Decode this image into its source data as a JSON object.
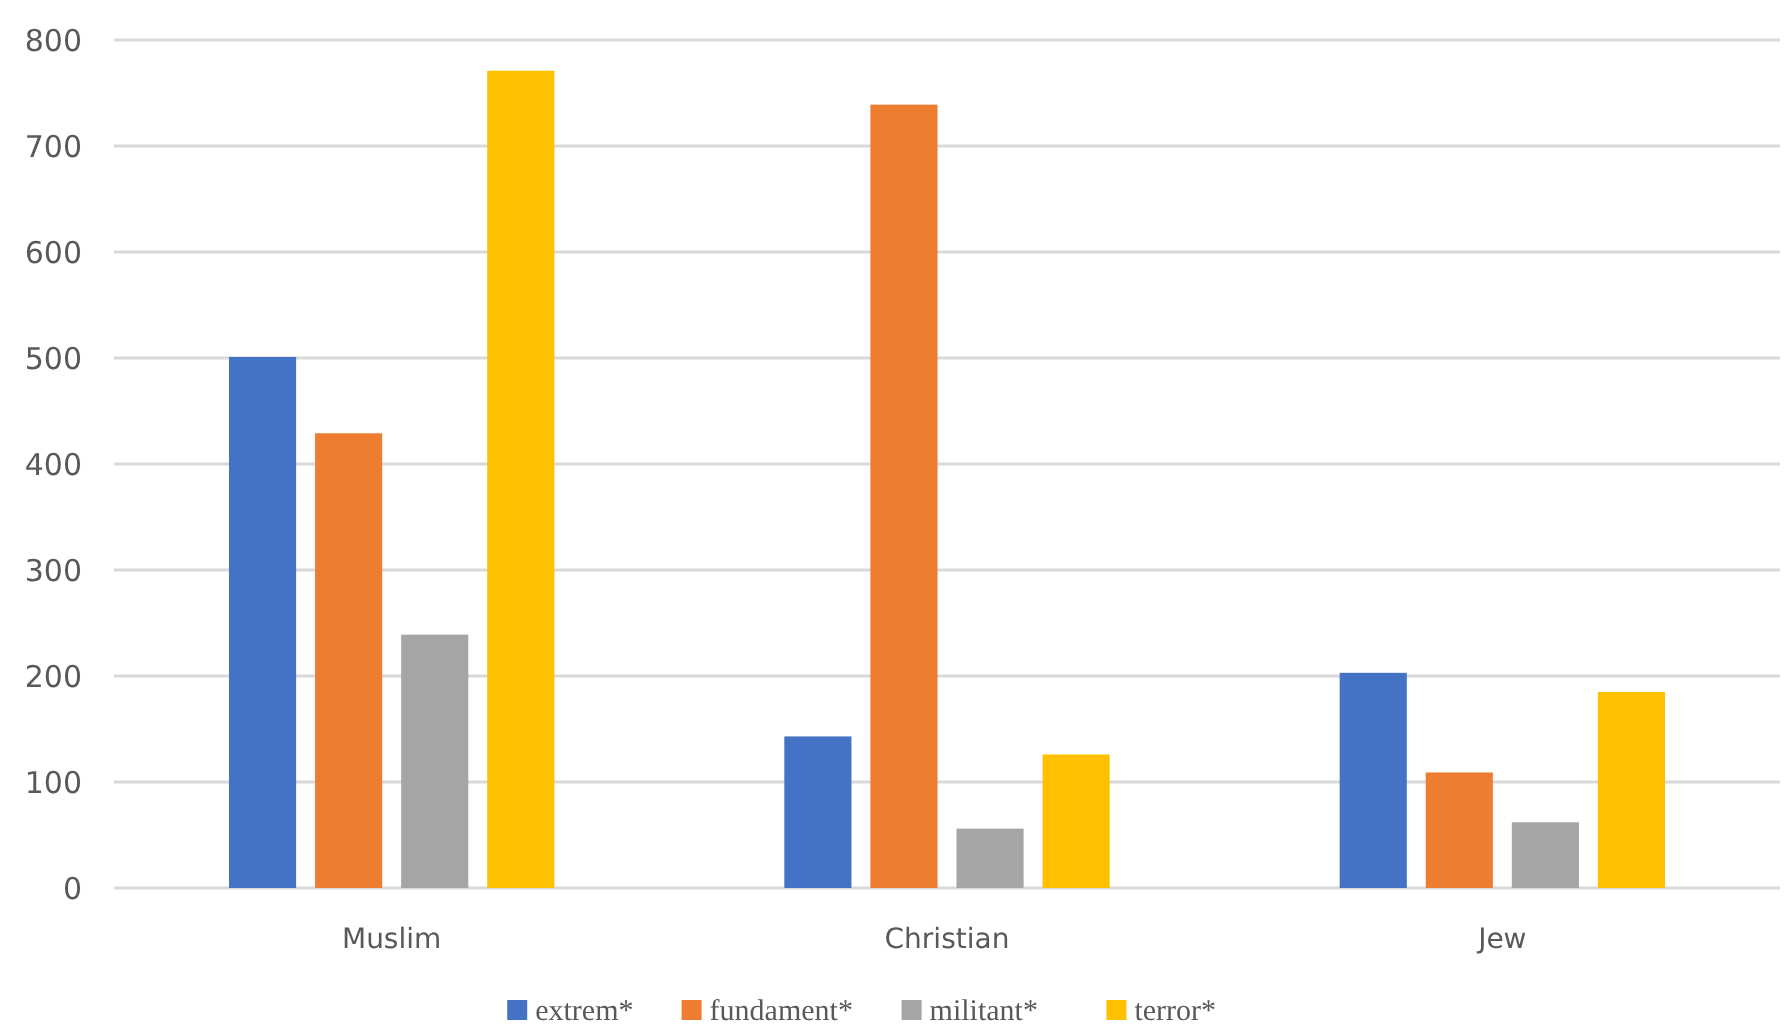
{
  "chart_data": {
    "type": "bar",
    "categories": [
      "Muslim",
      "Christian",
      "Jew"
    ],
    "series": [
      {
        "name": "extrem*",
        "color": "#4472c4",
        "values": [
          501,
          143,
          203
        ]
      },
      {
        "name": "fundament*",
        "color": "#ed7d31",
        "values": [
          429,
          739,
          109
        ]
      },
      {
        "name": "militant*",
        "color": "#a5a5a5",
        "values": [
          239,
          56,
          62
        ]
      },
      {
        "name": "terror*",
        "color": "#ffc000",
        "values": [
          771,
          126,
          185
        ]
      }
    ],
    "ylim": [
      0,
      800
    ],
    "yticks": [
      0,
      100,
      200,
      300,
      400,
      500,
      600,
      700,
      800
    ],
    "grid": "y",
    "legend": "bottom"
  }
}
